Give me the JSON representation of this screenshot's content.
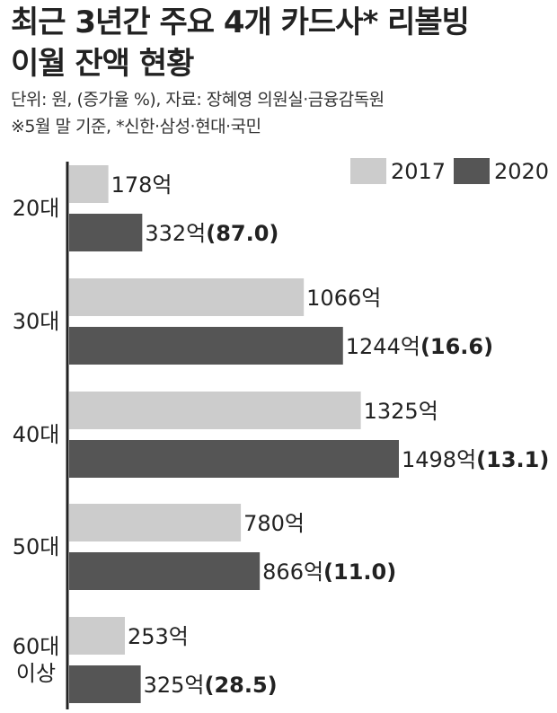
{
  "title": [
    "최근 3년간 주요 4개 카드사* 리볼빙",
    "이월 잔액 현황"
  ],
  "notes": [
    "단위: 원, (증가율 %), 자료: 장혜영 의원실·금융감독원",
    "※5월 말 기준, *신한·삼성·현대·국민"
  ],
  "colors": {
    "2017": "#cccccc",
    "2020": "#555555",
    "axis": "#222222"
  },
  "chart_data": {
    "type": "bar",
    "orientation": "horizontal",
    "categories": [
      [
        "20대"
      ],
      [
        "30대"
      ],
      [
        "40대"
      ],
      [
        "50대"
      ],
      [
        "60대",
        "이상"
      ]
    ],
    "series": [
      {
        "name": "2017",
        "values": [
          178,
          1066,
          1325,
          780,
          253
        ],
        "labels": [
          "178억",
          "1066억",
          "1325억",
          "780억",
          "253억"
        ]
      },
      {
        "name": "2020",
        "values": [
          332,
          1244,
          1498,
          866,
          325
        ],
        "labels": [
          "332억",
          "1244억",
          "1498억",
          "866억",
          "325억"
        ]
      }
    ],
    "growth": [
      "(87.0)",
      "(16.6)",
      "(13.1)",
      "(11.0)",
      "(28.5)"
    ],
    "unit": "억",
    "legend": "top-right",
    "grid": false
  }
}
